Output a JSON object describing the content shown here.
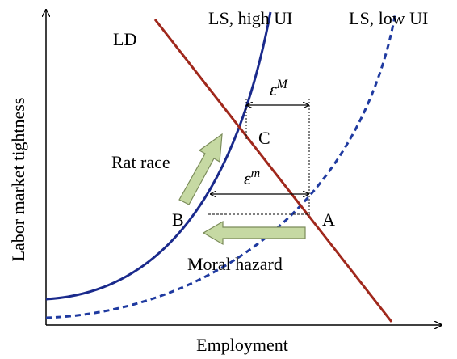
{
  "axes": {
    "x_label": "Employment",
    "y_label": "Labor market tightness"
  },
  "curves": [
    {
      "label": "LS, high UI"
    },
    {
      "label": "LS, low UI"
    },
    {
      "label": "LD"
    }
  ],
  "points": [
    {
      "label": "C"
    },
    {
      "label": "B"
    },
    {
      "label": "A"
    }
  ],
  "arrows": [
    {
      "label": "Rat race"
    },
    {
      "label": "Moral hazard"
    }
  ],
  "gaps": [
    {
      "symbol": "ε",
      "superscript": "M"
    },
    {
      "symbol": "ε",
      "superscript": "m"
    }
  ]
}
